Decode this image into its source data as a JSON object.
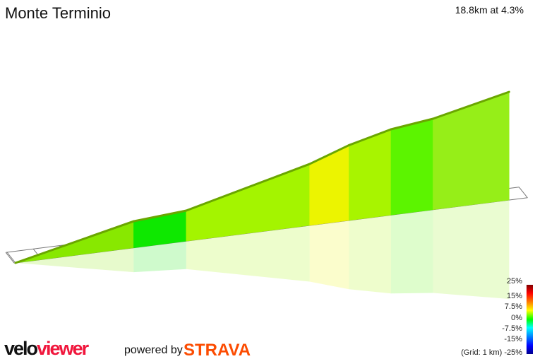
{
  "title": "Monte Terminio",
  "summary": "18.8km at 4.3%",
  "legend": {
    "labels": [
      "25%",
      "15%",
      "7.5%",
      "0%",
      "-7.5%",
      "-15%",
      "(Grid: 1 km) -25%"
    ]
  },
  "branding": {
    "velo": "velo",
    "viewer": "viewer",
    "powered_by": "powered by",
    "strava": "STRAVA"
  },
  "chart_data": {
    "type": "area",
    "title": "Monte Terminio",
    "total_distance_km": 18.8,
    "average_gradient_pct": 4.3,
    "grid_km": 1,
    "segments": [
      {
        "start_km": 0,
        "end_km": 4.5,
        "gradient_pct": 4.5,
        "color": "#88e800"
      },
      {
        "start_km": 4.5,
        "end_km": 6.5,
        "gradient_pct": 1.5,
        "color": "#0ee800"
      },
      {
        "start_km": 6.5,
        "end_km": 11.2,
        "gradient_pct": 5,
        "color": "#a4f400"
      },
      {
        "start_km": 11.2,
        "end_km": 12.7,
        "gradient_pct": 7,
        "color": "#ecf400"
      },
      {
        "start_km": 12.7,
        "end_km": 14.3,
        "gradient_pct": 5,
        "color": "#a8f400"
      },
      {
        "start_km": 14.3,
        "end_km": 15.9,
        "gradient_pct": 2.5,
        "color": "#5cf400"
      },
      {
        "start_km": 15.9,
        "end_km": 18.8,
        "gradient_pct": 4.5,
        "color": "#96ee18"
      }
    ],
    "color_scale_pct": [
      25,
      15,
      7.5,
      0,
      -7.5,
      -15,
      -25
    ]
  }
}
